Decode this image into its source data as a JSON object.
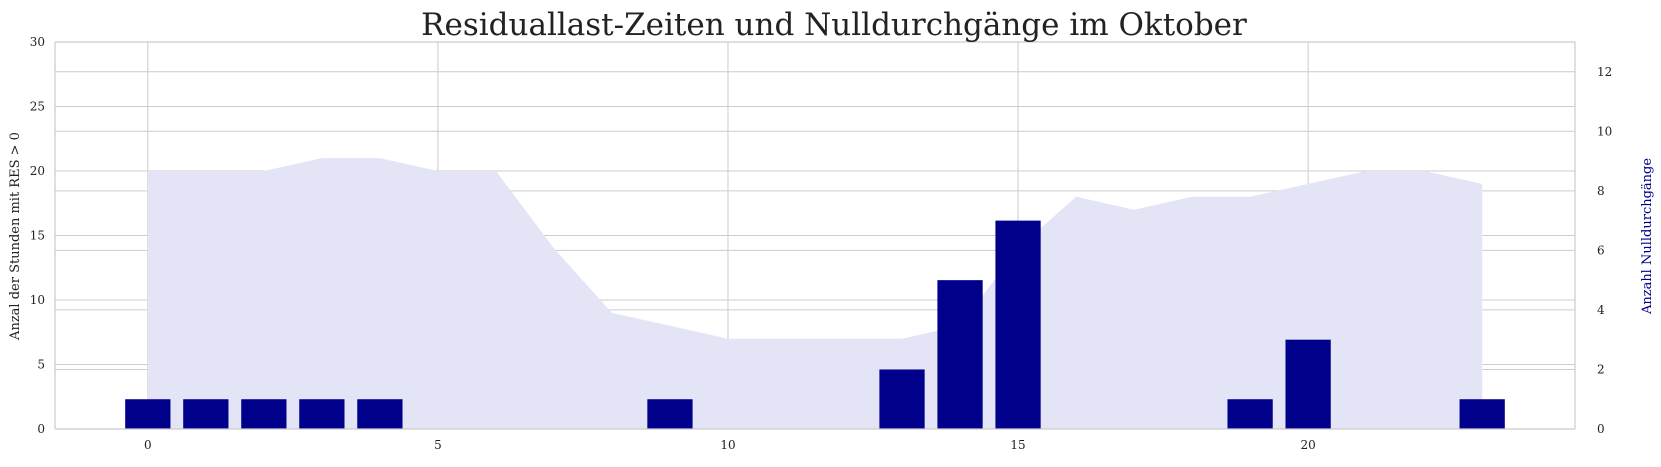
{
  "chart_data": {
    "type": "bar",
    "title": "Residuallast-Zeiten und Nulldurchgänge im Oktober",
    "xlabel": "",
    "ylabel": "Anzal der Stunden mit RES > 0",
    "y2label": "Anzahl Nulldurchgänge",
    "xlim": [
      -1.6,
      24.6
    ],
    "ylim": [
      0,
      30
    ],
    "y2lim": [
      0,
      13
    ],
    "x_ticks": [
      0,
      5,
      10,
      15,
      20
    ],
    "y_ticks": [
      0,
      5,
      10,
      15,
      20,
      25,
      30
    ],
    "y2_ticks": [
      0,
      2,
      4,
      6,
      8,
      10,
      12
    ],
    "grid": true,
    "series": [
      {
        "type": "area",
        "axis": "left",
        "color": "#e4e4f7",
        "x": [
          0,
          1,
          2,
          3,
          4,
          5,
          6,
          7,
          8,
          9,
          10,
          11,
          12,
          13,
          14,
          15,
          16,
          17,
          18,
          19,
          20,
          21,
          22,
          23
        ],
        "values": [
          20,
          20,
          20,
          21,
          21,
          20,
          20,
          14,
          9,
          8,
          7,
          7,
          7,
          7,
          8,
          14,
          18,
          17,
          18,
          18,
          19,
          20,
          20,
          19
        ]
      },
      {
        "type": "bar",
        "axis": "right",
        "color": "#00008b",
        "x": [
          0,
          1,
          2,
          3,
          4,
          9,
          13,
          14,
          15,
          19,
          20,
          23
        ],
        "values": [
          1,
          1,
          1,
          1,
          1,
          1,
          2,
          5,
          7,
          1,
          3,
          1
        ]
      }
    ],
    "colors": {
      "grid": "#cccccc",
      "spine": "#cccccc",
      "right_axis_label": "#00008b"
    }
  }
}
